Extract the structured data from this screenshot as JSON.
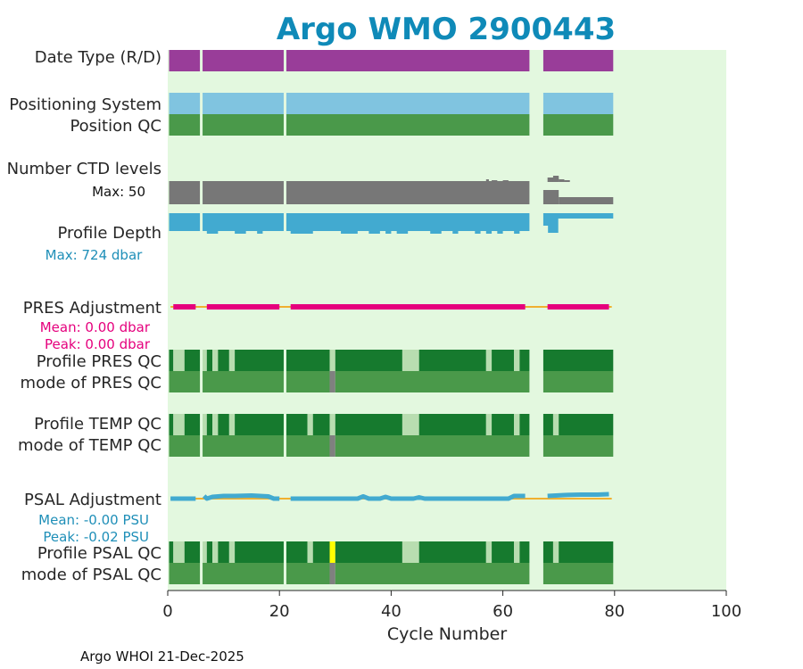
{
  "chart_data": {
    "type": "heatmap",
    "title": "Argo WMO 2900443",
    "xlabel": "Cycle Number",
    "xlim": [
      0,
      100
    ],
    "xticks": [
      "0",
      "20",
      "40",
      "60",
      "80",
      "100"
    ],
    "footer": "Argo WHOI 21-Dec-2025",
    "colors": {
      "title": "#0f8ab8",
      "plot_bg": "#e3f8df",
      "date_type": "#993d99",
      "positioning": "#80c4e0",
      "qc_mode": "#4a994a",
      "qc_good": "#167a2e",
      "qc_light": "#b8ddb0",
      "qc_gray": "#808080",
      "qc_yellow": "#ffff00",
      "ctd": "#777777",
      "depth": "#42aad0",
      "pres_adj": "#e5007d",
      "zero_line": "#f0b030",
      "psal_line": "#42aad0",
      "stats_pres": "#e5007d",
      "stats_psal": "#1f8fb8",
      "max_depth": "#1f8fb8"
    },
    "row_labels": {
      "date_type": "Date Type (R/D)",
      "positioning": "Positioning System",
      "position_qc": "Position QC",
      "ctd_levels": "Number CTD levels",
      "ctd_max": "Max: 50",
      "profile_depth": "Profile Depth",
      "depth_max": "Max:  724 dbar",
      "pres_adj": "PRES Adjustment",
      "pres_mean": "Mean: 0.00 dbar",
      "pres_peak": "Peak: 0.00 dbar",
      "profile_pres_qc": "Profile PRES QC",
      "mode_pres_qc": "mode of PRES QC",
      "profile_temp_qc": "Profile TEMP QC",
      "mode_temp_qc": "mode of TEMP QC",
      "psal_adj": "PSAL Adjustment",
      "psal_mean": "Mean: -0.00 PSU",
      "psal_peak": "Peak: -0.02 PSU",
      "profile_psal_qc": "Profile PSAL QC",
      "mode_psal_qc": "mode of PSAL QC"
    },
    "cycle_segments": [
      [
        0,
        5
      ],
      [
        6,
        20
      ],
      [
        21,
        64
      ],
      [
        67,
        79
      ]
    ],
    "ctd_levels": {
      "max": 50,
      "base_segments": [
        [
          0,
          5
        ],
        [
          6,
          20
        ],
        [
          21,
          64
        ],
        [
          67,
          79
        ]
      ],
      "extras": [
        [
          57,
          57.5,
          0.2
        ],
        [
          58,
          59,
          0.1
        ],
        [
          60,
          61,
          0.1
        ],
        [
          68,
          70,
          0.4
        ],
        [
          69,
          70,
          0.6
        ],
        [
          70,
          71,
          0.2
        ],
        [
          71,
          72,
          0.1
        ]
      ],
      "reduced": [
        [
          70,
          79,
          0.3
        ]
      ]
    },
    "profile_depth_max_dbar": 724,
    "pres_adjustment": {
      "mean_dbar": 0.0,
      "peak_dbar": 0.0,
      "segments": [
        [
          1,
          5
        ],
        [
          7,
          20
        ],
        [
          22,
          64
        ],
        [
          68,
          79
        ]
      ]
    },
    "psal_adjustment": {
      "mean_psu": -0.0,
      "peak_psu": -0.02,
      "points": [
        [
          0.5,
          0
        ],
        [
          5,
          0
        ],
        [
          6.5,
          -0.3
        ],
        [
          7,
          0
        ],
        [
          8,
          -0.2
        ],
        [
          10,
          -0.3
        ],
        [
          12,
          -0.3
        ],
        [
          15,
          -0.35
        ],
        [
          18,
          -0.25
        ],
        [
          19,
          0
        ],
        [
          20,
          0
        ],
        [
          22,
          0
        ],
        [
          34,
          0
        ],
        [
          35,
          -0.25
        ],
        [
          36,
          0
        ],
        [
          38,
          0
        ],
        [
          39,
          -0.2
        ],
        [
          40,
          0
        ],
        [
          44,
          0
        ],
        [
          45,
          -0.15
        ],
        [
          46,
          0
        ],
        [
          61,
          0
        ],
        [
          62,
          -0.3
        ],
        [
          64,
          -0.3
        ],
        [
          68,
          -0.3
        ],
        [
          71,
          -0.4
        ],
        [
          74,
          -0.45
        ],
        [
          77,
          -0.45
        ],
        [
          79,
          -0.5
        ]
      ]
    },
    "profile_pres_qc": [
      [
        0,
        1,
        "good"
      ],
      [
        1,
        3,
        "light"
      ],
      [
        3,
        5,
        "good"
      ],
      [
        6,
        7,
        "light"
      ],
      [
        7,
        8,
        "good"
      ],
      [
        8,
        9,
        "light"
      ],
      [
        9,
        11,
        "good"
      ],
      [
        11,
        12,
        "light"
      ],
      [
        12,
        20,
        "good"
      ],
      [
        21,
        29,
        "good"
      ],
      [
        29,
        30,
        "light"
      ],
      [
        30,
        42,
        "good"
      ],
      [
        42,
        45,
        "light"
      ],
      [
        45,
        57,
        "good"
      ],
      [
        57,
        58,
        "light"
      ],
      [
        58,
        62,
        "good"
      ],
      [
        62,
        63,
        "light"
      ],
      [
        63,
        64,
        "good"
      ],
      [
        67,
        79,
        "good"
      ]
    ],
    "mode_pres_qc": [
      [
        0,
        5,
        "mode"
      ],
      [
        6,
        20,
        "mode"
      ],
      [
        21,
        29,
        "mode"
      ],
      [
        29,
        30,
        "gray"
      ],
      [
        30,
        64,
        "mode"
      ],
      [
        67,
        79,
        "mode"
      ]
    ],
    "profile_temp_qc": [
      [
        0,
        1,
        "good"
      ],
      [
        1,
        3,
        "light"
      ],
      [
        3,
        5,
        "good"
      ],
      [
        6,
        7,
        "light"
      ],
      [
        7,
        8,
        "good"
      ],
      [
        8,
        9,
        "light"
      ],
      [
        9,
        11,
        "good"
      ],
      [
        11,
        12,
        "light"
      ],
      [
        12,
        20,
        "good"
      ],
      [
        21,
        25,
        "good"
      ],
      [
        25,
        26,
        "light"
      ],
      [
        26,
        29,
        "good"
      ],
      [
        29,
        30,
        "light"
      ],
      [
        30,
        42,
        "good"
      ],
      [
        42,
        45,
        "light"
      ],
      [
        45,
        57,
        "good"
      ],
      [
        57,
        58,
        "light"
      ],
      [
        58,
        62,
        "good"
      ],
      [
        62,
        63,
        "light"
      ],
      [
        63,
        64,
        "good"
      ],
      [
        67,
        69,
        "good"
      ],
      [
        69,
        70,
        "light"
      ],
      [
        70,
        79,
        "good"
      ]
    ],
    "mode_temp_qc": [
      [
        0,
        5,
        "mode"
      ],
      [
        6,
        20,
        "mode"
      ],
      [
        21,
        29,
        "mode"
      ],
      [
        29,
        30,
        "gray"
      ],
      [
        30,
        64,
        "mode"
      ],
      [
        67,
        79,
        "mode"
      ]
    ],
    "profile_psal_qc": [
      [
        0,
        1,
        "good"
      ],
      [
        1,
        3,
        "light"
      ],
      [
        3,
        5,
        "good"
      ],
      [
        6,
        7,
        "light"
      ],
      [
        7,
        8,
        "good"
      ],
      [
        8,
        9,
        "light"
      ],
      [
        9,
        11,
        "good"
      ],
      [
        11,
        12,
        "light"
      ],
      [
        12,
        20,
        "good"
      ],
      [
        21,
        25,
        "good"
      ],
      [
        25,
        26,
        "light"
      ],
      [
        26,
        29,
        "good"
      ],
      [
        29,
        30,
        "yellow"
      ],
      [
        30,
        42,
        "good"
      ],
      [
        42,
        45,
        "light"
      ],
      [
        45,
        57,
        "good"
      ],
      [
        57,
        58,
        "light"
      ],
      [
        58,
        62,
        "good"
      ],
      [
        62,
        63,
        "light"
      ],
      [
        63,
        64,
        "good"
      ],
      [
        67,
        69,
        "good"
      ],
      [
        69,
        70,
        "light"
      ],
      [
        70,
        79,
        "good"
      ]
    ],
    "mode_psal_qc": [
      [
        0,
        5,
        "mode"
      ],
      [
        6,
        20,
        "mode"
      ],
      [
        21,
        29,
        "mode"
      ],
      [
        29,
        30,
        "gray"
      ],
      [
        30,
        64,
        "mode"
      ],
      [
        67,
        79,
        "mode"
      ]
    ]
  }
}
